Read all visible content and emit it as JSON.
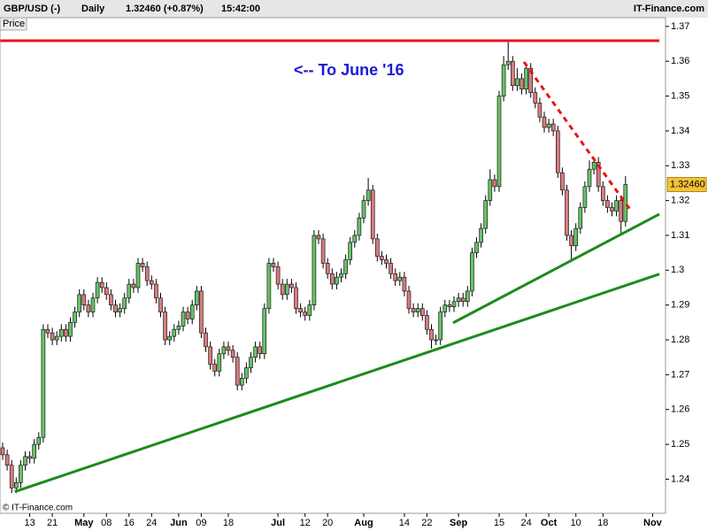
{
  "header": {
    "symbol": "GBP/USD (-)",
    "period": "Daily",
    "quote": "1.32460 (+0.87%)",
    "time": "15:42:00",
    "brand": "IT-Finance.com"
  },
  "footer": "© IT-Finance.com",
  "chart_data": {
    "type": "candlestick",
    "axis_label": "Price",
    "annotation": "<-- To June '16",
    "price_tag": "1.32460",
    "up_color": "#66c266",
    "down_color": "#d97b7d",
    "ylim": [
      1.2302,
      1.372
    ],
    "yticks": [
      1.24,
      1.25,
      1.26,
      1.27,
      1.28,
      1.29,
      1.3,
      1.31,
      1.32,
      1.33,
      1.34,
      1.35,
      1.36,
      1.37
    ],
    "categories": [
      null,
      null,
      null,
      null,
      null,
      null,
      "13",
      null,
      null,
      null,
      null,
      "21",
      null,
      null,
      null,
      null,
      null,
      null,
      "May",
      null,
      null,
      null,
      null,
      "08",
      null,
      null,
      null,
      null,
      "16",
      null,
      null,
      null,
      null,
      "24",
      null,
      null,
      null,
      null,
      null,
      "Jun",
      null,
      null,
      null,
      null,
      "09",
      null,
      null,
      null,
      null,
      null,
      "18",
      null,
      null,
      null,
      null,
      null,
      null,
      null,
      null,
      null,
      null,
      "Jul",
      null,
      null,
      null,
      null,
      null,
      "12",
      null,
      null,
      null,
      null,
      "20",
      null,
      null,
      null,
      null,
      null,
      null,
      null,
      "Aug",
      null,
      null,
      null,
      null,
      null,
      null,
      null,
      null,
      "14",
      null,
      null,
      null,
      null,
      "22",
      null,
      null,
      null,
      null,
      null,
      null,
      "Sep",
      null,
      null,
      null,
      null,
      null,
      null,
      null,
      null,
      "15",
      null,
      null,
      null,
      null,
      null,
      "24",
      null,
      null,
      null,
      null,
      "Oct",
      null,
      null,
      null,
      null,
      null,
      "10",
      null,
      null,
      null,
      null,
      null,
      "18",
      null,
      null,
      null,
      null,
      null,
      null,
      null,
      null,
      null,
      null,
      "Nov",
      null
    ],
    "open": [
      1.249,
      1.247,
      1.244,
      1.2375,
      1.239,
      1.244,
      1.2465,
      1.246,
      1.25,
      1.252,
      1.283,
      1.282,
      1.28,
      1.281,
      1.283,
      1.281,
      1.285,
      1.288,
      1.293,
      1.29,
      1.288,
      1.292,
      1.2965,
      1.295,
      1.293,
      1.29,
      1.288,
      1.289,
      1.292,
      1.296,
      1.295,
      1.302,
      1.301,
      1.297,
      1.296,
      1.292,
      1.288,
      1.28,
      1.281,
      1.283,
      1.284,
      1.288,
      1.286,
      1.29,
      1.294,
      1.282,
      1.278,
      1.273,
      1.271,
      1.276,
      1.278,
      1.277,
      1.275,
      1.267,
      1.269,
      1.272,
      1.275,
      1.278,
      1.276,
      1.289,
      1.302,
      1.301,
      1.296,
      1.293,
      1.296,
      1.295,
      1.289,
      1.288,
      1.287,
      1.29,
      1.31,
      1.309,
      1.302,
      1.299,
      1.296,
      1.298,
      1.299,
      1.303,
      1.308,
      1.31,
      1.315,
      1.32,
      1.323,
      1.309,
      1.304,
      1.303,
      1.302,
      1.299,
      1.297,
      1.298,
      1.294,
      1.289,
      1.288,
      1.289,
      1.287,
      1.283,
      1.28,
      1.28,
      1.288,
      1.29,
      1.2895,
      1.291,
      1.292,
      1.291,
      1.294,
      1.305,
      1.308,
      1.312,
      1.32,
      1.326,
      1.324,
      1.35,
      1.359,
      1.36,
      1.353,
      1.355,
      1.352,
      1.358,
      1.351,
      1.348,
      1.344,
      1.341,
      1.342,
      1.34,
      1.328,
      1.323,
      1.31,
      1.307,
      1.312,
      1.318,
      1.324,
      1.329,
      1.331,
      1.324,
      1.32,
      1.318,
      1.317,
      1.32,
      1.314,
      null,
      null,
      null,
      null,
      null,
      null,
      null
    ],
    "high": [
      1.2505,
      1.2485,
      1.2455,
      1.2405,
      1.2455,
      1.248,
      1.248,
      1.2515,
      1.2535,
      1.2845,
      1.2845,
      1.2835,
      1.2825,
      1.2845,
      1.2845,
      1.2865,
      1.2895,
      1.2945,
      1.2945,
      1.2915,
      1.2935,
      1.298,
      1.298,
      1.2965,
      1.2945,
      1.2915,
      1.2905,
      1.2935,
      1.2975,
      1.2975,
      1.3035,
      1.3035,
      1.3025,
      1.2985,
      1.2975,
      1.2935,
      1.2895,
      1.2825,
      1.2845,
      1.2855,
      1.2895,
      1.2895,
      1.2915,
      1.2955,
      1.2955,
      1.2835,
      1.2795,
      1.2745,
      1.2775,
      1.2795,
      1.2795,
      1.2785,
      1.2765,
      1.2705,
      1.2735,
      1.2765,
      1.2795,
      1.2795,
      1.2905,
      1.3035,
      1.3035,
      1.3025,
      1.2975,
      1.2975,
      1.2975,
      1.2965,
      1.2905,
      1.2895,
      1.2915,
      1.3115,
      1.3115,
      1.3105,
      1.3035,
      1.3005,
      1.2995,
      1.3005,
      1.3045,
      1.3095,
      1.3115,
      1.3165,
      1.3215,
      1.3265,
      1.3245,
      1.3105,
      1.3055,
      1.3045,
      1.3035,
      1.3005,
      1.2995,
      1.2995,
      1.2955,
      1.2905,
      1.2905,
      1.2905,
      1.2885,
      1.2845,
      1.2815,
      1.2895,
      1.2915,
      1.2915,
      1.2925,
      1.2935,
      1.2935,
      1.2955,
      1.3065,
      1.3095,
      1.3135,
      1.3215,
      1.329,
      1.3275,
      1.3515,
      1.3615,
      1.3655,
      1.3615,
      1.358,
      1.3565,
      1.3595,
      1.3595,
      1.3525,
      1.3495,
      1.3455,
      1.3435,
      1.3435,
      1.3415,
      1.3295,
      1.3245,
      1.3115,
      1.3135,
      1.3195,
      1.3255,
      1.3315,
      1.3325,
      1.3325,
      1.3255,
      1.3215,
      1.3195,
      1.3215,
      1.3215,
      1.327,
      null,
      null,
      null,
      null,
      null,
      null,
      null
    ],
    "low": [
      1.2455,
      1.2425,
      1.236,
      1.236,
      1.2375,
      1.2425,
      1.2445,
      1.2445,
      1.2485,
      1.2505,
      1.2805,
      1.2785,
      1.2785,
      1.2795,
      1.2795,
      1.2795,
      1.2835,
      1.2865,
      1.2885,
      1.2865,
      1.2865,
      1.2905,
      1.2935,
      1.2915,
      1.2885,
      1.2865,
      1.2865,
      1.2875,
      1.2905,
      1.2935,
      1.2935,
      1.2995,
      1.2955,
      1.2945,
      1.2905,
      1.2865,
      1.2785,
      1.2785,
      1.2795,
      1.2815,
      1.2825,
      1.2845,
      1.2845,
      1.2885,
      1.2805,
      1.2765,
      1.2715,
      1.2695,
      1.2695,
      1.2745,
      1.2755,
      1.2735,
      1.2655,
      1.2655,
      1.2675,
      1.2705,
      1.2735,
      1.2745,
      1.2745,
      1.2875,
      1.2995,
      1.2945,
      1.2915,
      1.2915,
      1.2935,
      1.2875,
      1.2865,
      1.2855,
      1.2855,
      1.2885,
      1.3075,
      1.3005,
      1.2975,
      1.2945,
      1.2945,
      1.2965,
      1.2975,
      1.3015,
      1.3065,
      1.3085,
      1.3135,
      1.3185,
      1.3075,
      1.3025,
      1.3015,
      1.3005,
      1.2975,
      1.2955,
      1.2955,
      1.2925,
      1.2875,
      1.2865,
      1.2865,
      1.2855,
      1.2815,
      1.2775,
      1.2785,
      1.2785,
      1.2865,
      1.288,
      1.288,
      1.2895,
      1.2895,
      1.2895,
      1.2925,
      1.3035,
      1.3065,
      1.3105,
      1.3185,
      1.3225,
      1.3225,
      1.3485,
      1.3575,
      1.3515,
      1.3515,
      1.3505,
      1.3505,
      1.3495,
      1.3465,
      1.3425,
      1.3395,
      1.3395,
      1.3385,
      1.3265,
      1.3215,
      1.3085,
      1.303,
      1.3055,
      1.3105,
      1.3165,
      1.3225,
      1.3275,
      1.3225,
      1.3185,
      1.3165,
      1.3155,
      1.3155,
      1.31,
      1.3125,
      null,
      null,
      null,
      null,
      null,
      null,
      null
    ],
    "close": [
      1.247,
      1.244,
      1.2375,
      1.239,
      1.244,
      1.2465,
      1.246,
      1.25,
      1.252,
      1.283,
      1.282,
      1.28,
      1.281,
      1.283,
      1.281,
      1.285,
      1.288,
      1.293,
      1.29,
      1.288,
      1.292,
      1.2965,
      1.295,
      1.293,
      1.29,
      1.288,
      1.289,
      1.292,
      1.296,
      1.295,
      1.302,
      1.301,
      1.297,
      1.296,
      1.292,
      1.288,
      1.28,
      1.281,
      1.283,
      1.284,
      1.288,
      1.286,
      1.29,
      1.294,
      1.282,
      1.278,
      1.273,
      1.271,
      1.276,
      1.278,
      1.277,
      1.275,
      1.267,
      1.269,
      1.272,
      1.275,
      1.278,
      1.276,
      1.289,
      1.302,
      1.301,
      1.296,
      1.293,
      1.296,
      1.295,
      1.289,
      1.288,
      1.287,
      1.29,
      1.31,
      1.309,
      1.302,
      1.299,
      1.296,
      1.298,
      1.299,
      1.303,
      1.308,
      1.31,
      1.315,
      1.32,
      1.323,
      1.309,
      1.304,
      1.303,
      1.302,
      1.299,
      1.297,
      1.298,
      1.294,
      1.289,
      1.288,
      1.289,
      1.287,
      1.283,
      1.28,
      1.28,
      1.288,
      1.29,
      1.2895,
      1.291,
      1.292,
      1.291,
      1.294,
      1.305,
      1.308,
      1.312,
      1.32,
      1.326,
      1.324,
      1.35,
      1.359,
      1.36,
      1.353,
      1.355,
      1.352,
      1.358,
      1.351,
      1.348,
      1.344,
      1.341,
      1.342,
      1.34,
      1.328,
      1.323,
      1.31,
      1.307,
      1.312,
      1.318,
      1.324,
      1.329,
      1.331,
      1.324,
      1.32,
      1.318,
      1.317,
      1.32,
      1.314,
      1.3246,
      null,
      null,
      null,
      null,
      null,
      null,
      null
    ],
    "trendlines": [
      {
        "color": "#e8141a",
        "style": "solid",
        "from": [
          -0.5,
          1.3659
        ],
        "to": [
          145.5,
          1.3659
        ]
      },
      {
        "color": "#e8141a",
        "style": "dashed",
        "from": [
          115.5,
          1.3598
        ],
        "to": [
          139.2,
          1.3171
        ]
      },
      {
        "color": "#1e8a1e",
        "style": "solid",
        "from": [
          2.7,
          1.2364
        ],
        "to": [
          145.5,
          1.2989
        ]
      },
      {
        "color": "#1e8a1e",
        "style": "solid",
        "from": [
          99.8,
          1.2849
        ],
        "to": [
          145.5,
          1.3161
        ]
      }
    ]
  }
}
